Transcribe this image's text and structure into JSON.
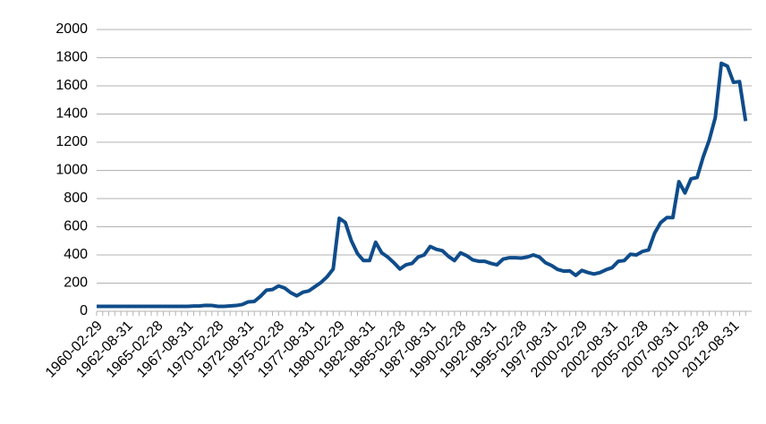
{
  "chart_data": {
    "type": "line",
    "categories": [
      "1960-02-29",
      null,
      null,
      null,
      null,
      "1962-08-31",
      null,
      null,
      null,
      null,
      "1965-02-28",
      null,
      null,
      null,
      null,
      "1967-08-31",
      null,
      null,
      null,
      null,
      "1970-02-28",
      null,
      null,
      null,
      null,
      "1972-08-31",
      null,
      null,
      null,
      null,
      "1975-02-28",
      null,
      null,
      null,
      null,
      "1977-08-31",
      null,
      null,
      null,
      null,
      "1980-02-29",
      null,
      null,
      null,
      null,
      "1982-08-31",
      null,
      null,
      null,
      null,
      "1985-02-28",
      null,
      null,
      null,
      null,
      "1987-08-31",
      null,
      null,
      null,
      null,
      "1990-02-28",
      null,
      null,
      null,
      null,
      "1992-08-31",
      null,
      null,
      null,
      null,
      "1995-02-28",
      null,
      null,
      null,
      null,
      "1997-08-31",
      null,
      null,
      null,
      null,
      "2000-02-29",
      null,
      null,
      null,
      null,
      "2002-08-31",
      null,
      null,
      null,
      null,
      "2005-02-28",
      null,
      null,
      null,
      null,
      "2007-08-31",
      null,
      null,
      null,
      null,
      "2010-02-28",
      null,
      null,
      null,
      null,
      "2012-08-31",
      null,
      null
    ],
    "series": [
      {
        "color": "#0f4c8a",
        "values": [
          35,
          35,
          35,
          35,
          35,
          35,
          35,
          35,
          35,
          35,
          35,
          35,
          35,
          35,
          35,
          35,
          37,
          38,
          42,
          41,
          35,
          35,
          38,
          41,
          48,
          67,
          70,
          106,
          150,
          155,
          180,
          165,
          132,
          110,
          135,
          145,
          175,
          205,
          245,
          300,
          660,
          630,
          500,
          410,
          360,
          360,
          490,
          415,
          385,
          345,
          300,
          330,
          340,
          385,
          400,
          460,
          440,
          430,
          390,
          360,
          415,
          395,
          365,
          355,
          355,
          340,
          330,
          370,
          380,
          380,
          378,
          385,
          400,
          385,
          345,
          325,
          297,
          285,
          287,
          255,
          290,
          275,
          265,
          275,
          295,
          310,
          355,
          360,
          405,
          400,
          425,
          435,
          555,
          630,
          665,
          665,
          920,
          840,
          940,
          950,
          1095,
          1215,
          1375,
          1760,
          1740,
          1625,
          1630,
          1350
        ]
      }
    ],
    "ylim": [
      0,
      2000
    ],
    "yticks": [
      0,
      200,
      400,
      600,
      800,
      1000,
      1200,
      1400,
      1600,
      1800,
      2000
    ],
    "grid": true
  }
}
